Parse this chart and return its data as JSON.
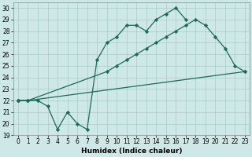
{
  "line1_x": [
    0,
    1,
    2,
    3,
    4,
    5,
    6,
    7,
    8,
    9,
    10,
    11,
    12,
    13,
    14,
    15,
    16,
    17
  ],
  "line1_y": [
    22.0,
    22.0,
    22.0,
    21.5,
    19.5,
    21.0,
    20.0,
    19.5,
    25.5,
    27.0,
    27.5,
    28.5,
    28.5,
    28.0,
    29.0,
    29.5,
    30.0,
    29.0
  ],
  "line2_x": [
    0,
    1,
    9,
    10,
    11,
    12,
    13,
    14,
    15,
    16,
    17,
    18,
    19,
    20,
    21,
    22,
    23
  ],
  "line2_y": [
    22.0,
    22.0,
    24.5,
    25.0,
    25.5,
    26.0,
    26.5,
    27.0,
    27.5,
    28.0,
    28.5,
    29.0,
    28.5,
    27.5,
    26.5,
    25.0,
    24.5
  ],
  "line3_x": [
    0,
    1,
    23
  ],
  "line3_y": [
    22.0,
    22.0,
    24.5
  ],
  "color": "#1a6b5a",
  "bg_color": "#cee8e8",
  "grid_color": "#aacccc",
  "xlabel": "Humidex (Indice chaleur)",
  "xlim": [
    -0.5,
    23.5
  ],
  "ylim": [
    19,
    30.5
  ],
  "yticks": [
    19,
    20,
    21,
    22,
    23,
    24,
    25,
    26,
    27,
    28,
    29,
    30
  ],
  "xticks": [
    0,
    1,
    2,
    3,
    4,
    5,
    6,
    7,
    8,
    9,
    10,
    11,
    12,
    13,
    14,
    15,
    16,
    17,
    18,
    19,
    20,
    21,
    22,
    23
  ],
  "xlabel_fontsize": 6.5,
  "tick_fontsize": 5.5
}
